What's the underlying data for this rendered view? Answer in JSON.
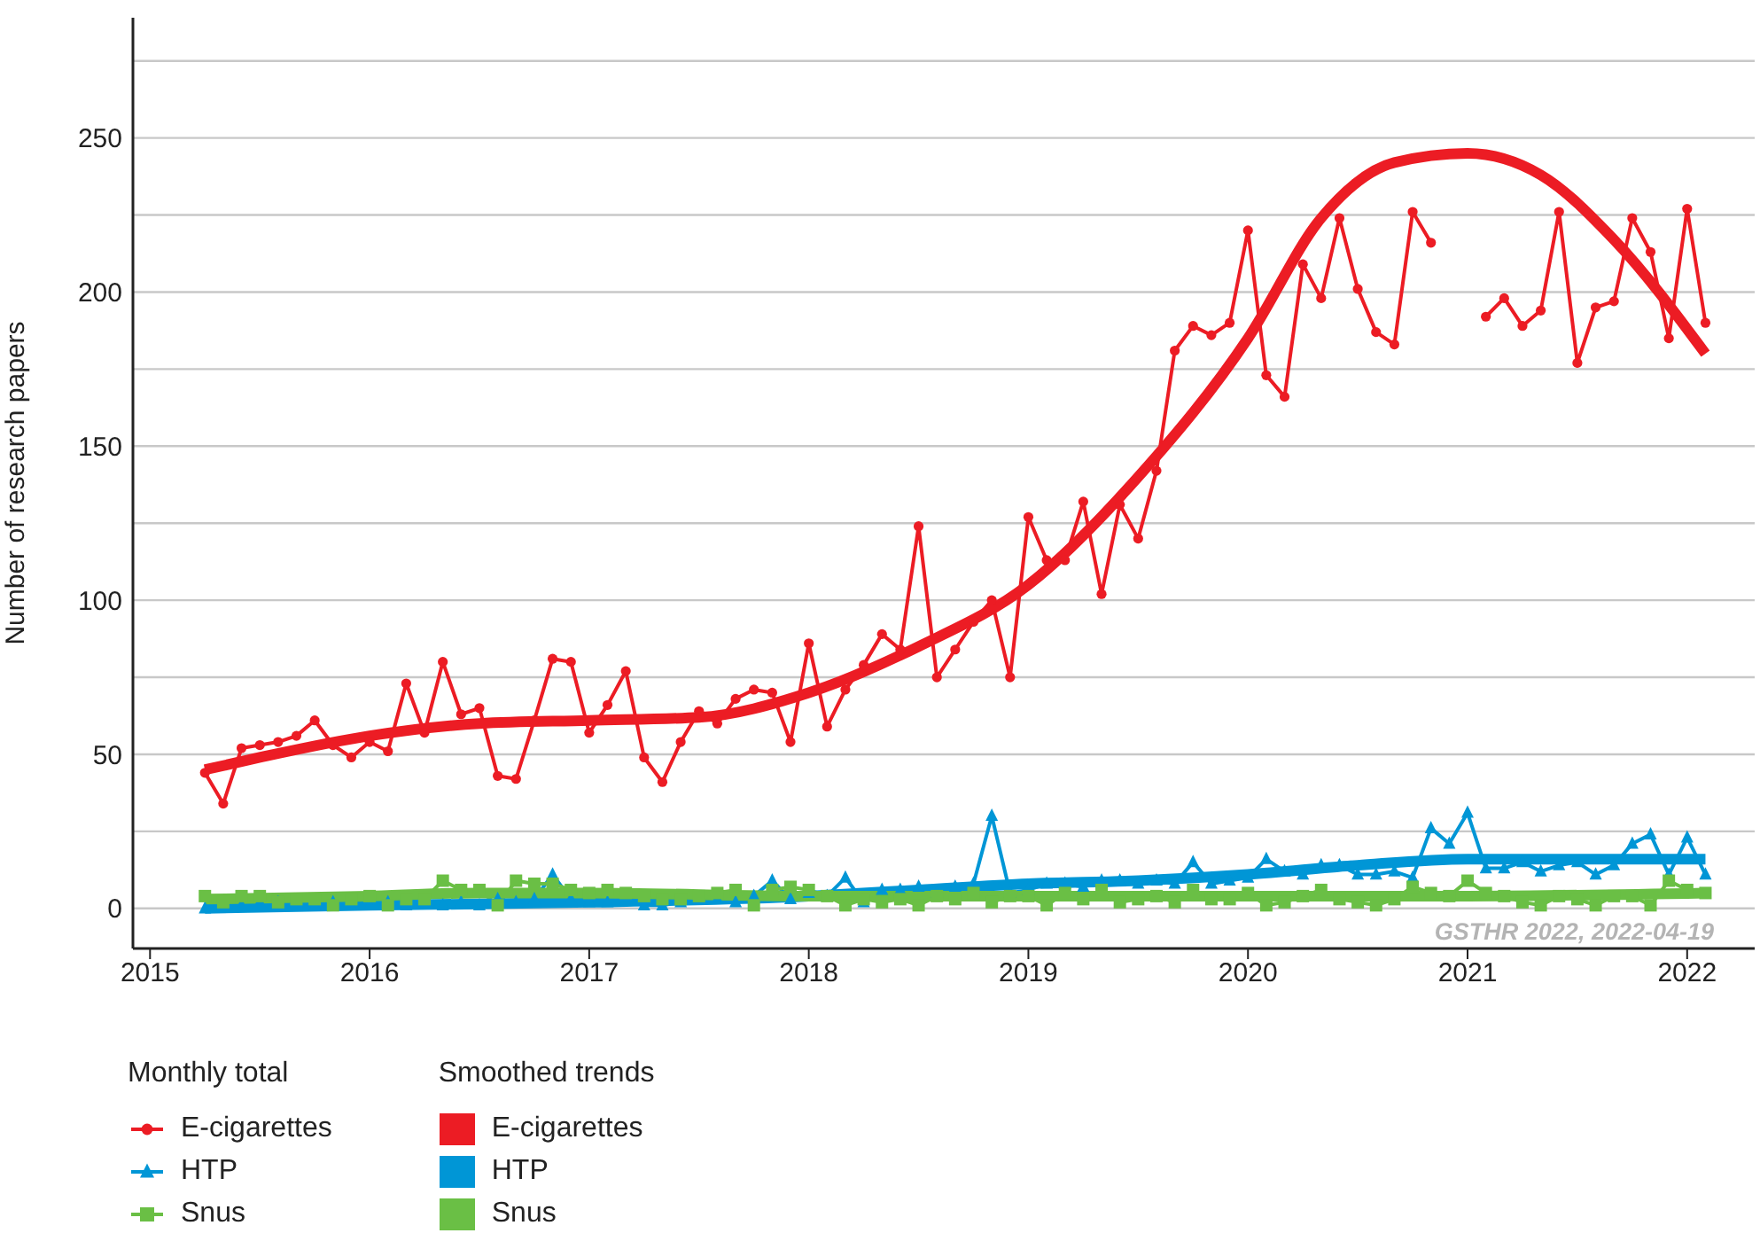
{
  "chart_data": {
    "type": "line",
    "ylabel": "Number of research papers",
    "legend_title": [
      "Monthly total",
      "Smoothed trends"
    ],
    "annotations": [
      "GSTHR 2022, 2022-04-19"
    ],
    "x": [
      "2015-04",
      "2015-05",
      "2015-06",
      "2015-07",
      "2015-08",
      "2015-09",
      "2015-10",
      "2015-11",
      "2015-12",
      "2016-01",
      "2016-02",
      "2016-03",
      "2016-04",
      "2016-05",
      "2016-06",
      "2016-07",
      "2016-08",
      "2016-09",
      "2016-10",
      "2016-11",
      "2016-12",
      "2017-01",
      "2017-02",
      "2017-03",
      "2017-04",
      "2017-05",
      "2017-06",
      "2017-07",
      "2017-08",
      "2017-09",
      "2017-10",
      "2017-11",
      "2017-12",
      "2018-01",
      "2018-02",
      "2018-03",
      "2018-04",
      "2018-05",
      "2018-06",
      "2018-07",
      "2018-08",
      "2018-09",
      "2018-10",
      "2018-11",
      "2018-12",
      "2019-01",
      "2019-02",
      "2019-03",
      "2019-04",
      "2019-05",
      "2019-06",
      "2019-07",
      "2019-08",
      "2019-09",
      "2019-10",
      "2019-11",
      "2019-12",
      "2020-01",
      "2020-02",
      "2020-03",
      "2020-04",
      "2020-05",
      "2020-06",
      "2020-07",
      "2020-08",
      "2020-09",
      "2020-10",
      "2020-11",
      "2020-12",
      "2021-01",
      "2021-02",
      "2021-03",
      "2021-04",
      "2021-05",
      "2021-06",
      "2021-07",
      "2021-08",
      "2021-09",
      "2021-10",
      "2021-11",
      "2021-12",
      "2022-01",
      "2022-02"
    ],
    "series": [
      {
        "name": "E-cigarettes",
        "color": "#ec1c24",
        "marker": "circle",
        "values": [
          44,
          34,
          52,
          53,
          54,
          56,
          61,
          53,
          49,
          54,
          51,
          73,
          57,
          80,
          63,
          65,
          43,
          42,
          61,
          81,
          80,
          57,
          66,
          77,
          49,
          41,
          54,
          64,
          60,
          68,
          71,
          70,
          54,
          86,
          59,
          71,
          79,
          89,
          84,
          124,
          75,
          84,
          93,
          100,
          75,
          127,
          113,
          113,
          132,
          102,
          131,
          120,
          142,
          181,
          189,
          186,
          190,
          220,
          173,
          166,
          209,
          198,
          224,
          201,
          187,
          183,
          226,
          216,
          null,
          null,
          192,
          198,
          189,
          194,
          226,
          177,
          195,
          197,
          224,
          213,
          185,
          227,
          190
        ]
      },
      {
        "name": "HTP",
        "color": "#0096d6",
        "marker": "triangle",
        "values": [
          0,
          1,
          1,
          2,
          2,
          1,
          1,
          2,
          1,
          1,
          2,
          1,
          2,
          1,
          2,
          1,
          3,
          2,
          3,
          11,
          3,
          2,
          2,
          3,
          1,
          1,
          2,
          3,
          3,
          2,
          4,
          9,
          3,
          5,
          4,
          10,
          2,
          6,
          6,
          7,
          5,
          7,
          8,
          30,
          5,
          6,
          8,
          8,
          7,
          9,
          9,
          8,
          9,
          8,
          15,
          8,
          9,
          10,
          16,
          12,
          11,
          14,
          14,
          11,
          11,
          12,
          10,
          26,
          21,
          31,
          13,
          13,
          15,
          12,
          14,
          15,
          11,
          14,
          21,
          24,
          11,
          23,
          11
        ]
      },
      {
        "name": "Snus",
        "color": "#6abf45",
        "marker": "square",
        "values": [
          4,
          2,
          4,
          4,
          2,
          3,
          3,
          1,
          3,
          4,
          1,
          3,
          3,
          9,
          6,
          6,
          1,
          9,
          8,
          8,
          6,
          5,
          6,
          5,
          4,
          3,
          3,
          4,
          5,
          6,
          1,
          6,
          7,
          6,
          4,
          1,
          3,
          2,
          3,
          1,
          4,
          3,
          5,
          2,
          4,
          4,
          1,
          5,
          3,
          6,
          2,
          3,
          4,
          2,
          6,
          3,
          3,
          5,
          1,
          2,
          4,
          6,
          3,
          2,
          1,
          3,
          7,
          5,
          4,
          9,
          5,
          4,
          2,
          1,
          4,
          3,
          1,
          4,
          4,
          1,
          9,
          6,
          5
        ]
      },
      {
        "name": "E-cigarettes",
        "color": "#ec1c24",
        "marker": "none",
        "x": [
          "2015-04",
          "2015-07",
          "2016-01",
          "2016-07",
          "2017-01",
          "2017-07",
          "2018-01",
          "2018-07",
          "2019-01",
          "2019-07",
          "2020-01",
          "2020-05",
          "2020-09",
          "2021-01",
          "2021-05",
          "2021-09",
          "2022-02"
        ],
        "values": [
          45,
          49,
          56,
          60,
          61,
          62,
          70,
          85,
          105,
          140,
          185,
          224,
          242,
          245,
          238,
          217,
          180
        ]
      },
      {
        "name": "HTP",
        "color": "#0096d6",
        "marker": "none",
        "x": [
          "2015-04",
          "2016-01",
          "2017-01",
          "2018-01",
          "2018-07",
          "2019-01",
          "2019-07",
          "2020-01",
          "2020-07",
          "2021-01",
          "2021-07",
          "2022-02"
        ],
        "values": [
          0,
          1,
          2,
          4,
          6,
          8,
          9,
          11,
          14,
          16,
          16,
          16
        ]
      },
      {
        "name": "Snus",
        "color": "#6abf45",
        "marker": "none",
        "x": [
          "2015-04",
          "2016-01",
          "2016-07",
          "2017-01",
          "2018-01",
          "2019-01",
          "2020-01",
          "2021-01",
          "2022-02"
        ],
        "values": [
          3,
          4,
          5,
          5,
          4,
          4,
          4,
          4,
          5
        ]
      }
    ],
    "xlim": [
      "2014-12-03",
      "2022-04-22"
    ],
    "xticks": [
      "2015",
      "2016",
      "2017",
      "2018",
      "2019",
      "2020",
      "2021",
      "2022"
    ],
    "ylim": [
      -13,
      289
    ],
    "yticks": [
      0,
      {
        "value": 25,
        "label": null
      },
      50,
      {
        "value": 75,
        "label": null
      },
      100,
      {
        "value": 125,
        "label": null
      },
      150,
      {
        "value": 175,
        "label": null
      },
      200,
      {
        "value": 225,
        "label": null
      },
      250,
      {
        "value": 275,
        "label": null
      }
    ],
    "grid": "y",
    "legend": "bottom left"
  }
}
